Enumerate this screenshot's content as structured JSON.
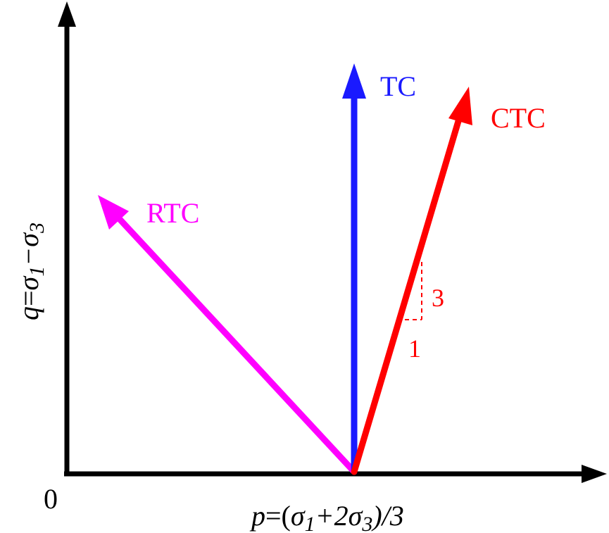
{
  "diagram": {
    "axes": {
      "x_label": {
        "pre": "p",
        "eq": "=(",
        "s1": "σ",
        "s1sub": "1",
        "plus": "+2",
        "s3": "σ",
        "s3sub": "3",
        "post": ")/3"
      },
      "y_label": {
        "pre": "q",
        "eq": "=",
        "s1": "σ",
        "s1sub": "1",
        "minus": "−",
        "s3": "σ",
        "s3sub": "3"
      },
      "origin": "0"
    },
    "paths": [
      {
        "name": "TC",
        "color": "#1a1aff"
      },
      {
        "name": "CTC",
        "color": "#ff0000"
      },
      {
        "name": "RTC",
        "color": "#ff00ff"
      }
    ],
    "slope": {
      "rise": "3",
      "run": "1",
      "color": "#ff0000"
    }
  }
}
